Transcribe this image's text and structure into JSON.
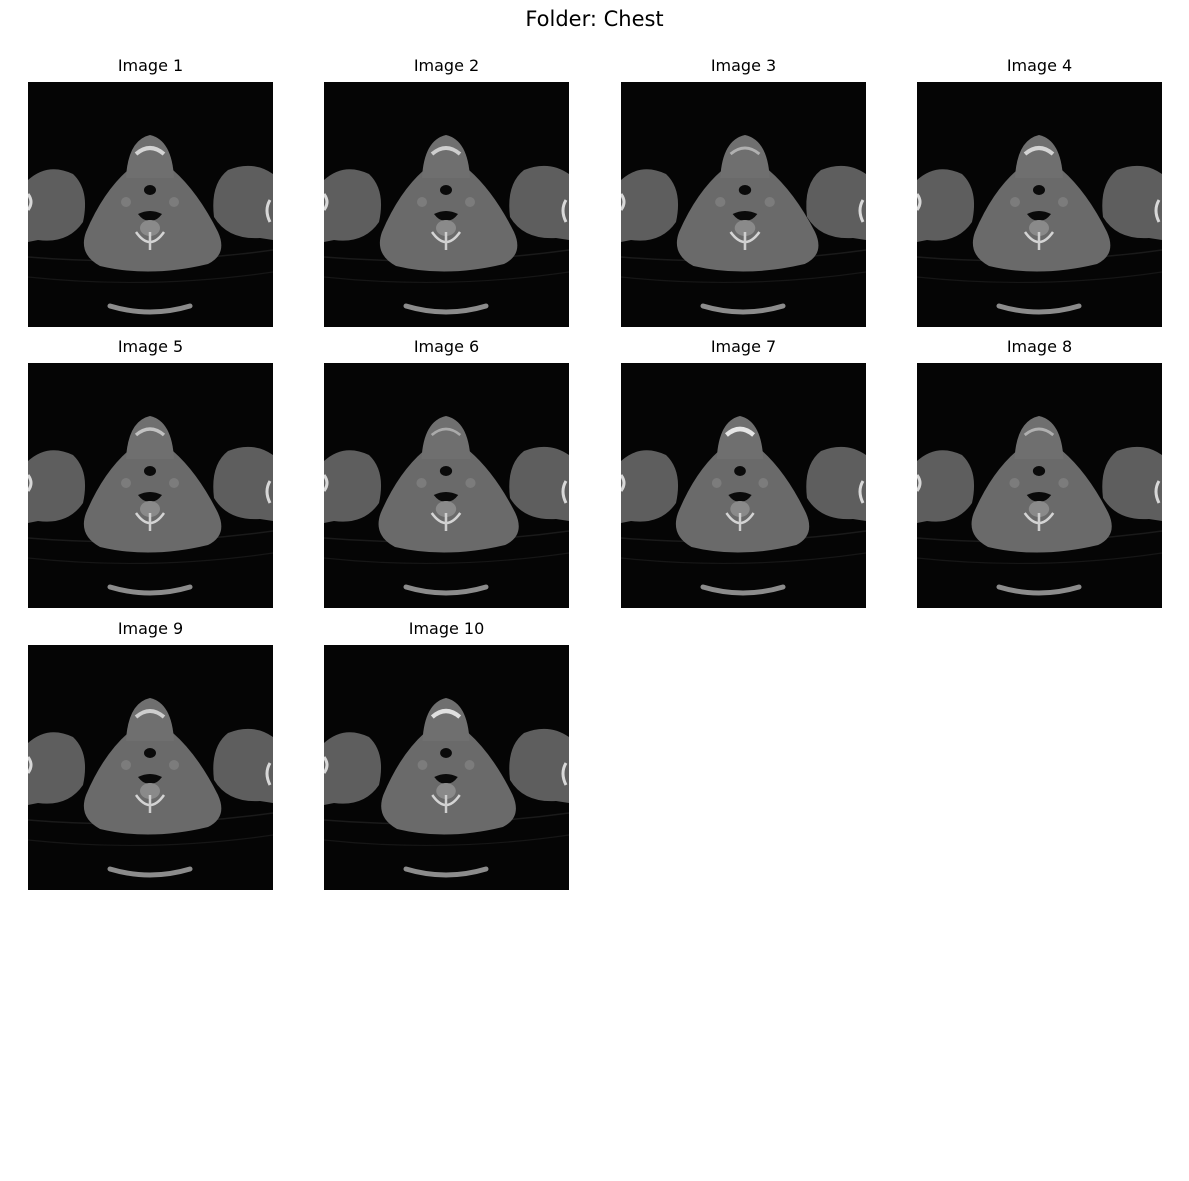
{
  "figure": {
    "title": "Folder: Chest"
  },
  "images": [
    {
      "label": "Image 1"
    },
    {
      "label": "Image 2"
    },
    {
      "label": "Image 3"
    },
    {
      "label": "Image 4"
    },
    {
      "label": "Image 5"
    },
    {
      "label": "Image 6"
    },
    {
      "label": "Image 7"
    },
    {
      "label": "Image 8"
    },
    {
      "label": "Image 9"
    },
    {
      "label": "Image 10"
    }
  ]
}
